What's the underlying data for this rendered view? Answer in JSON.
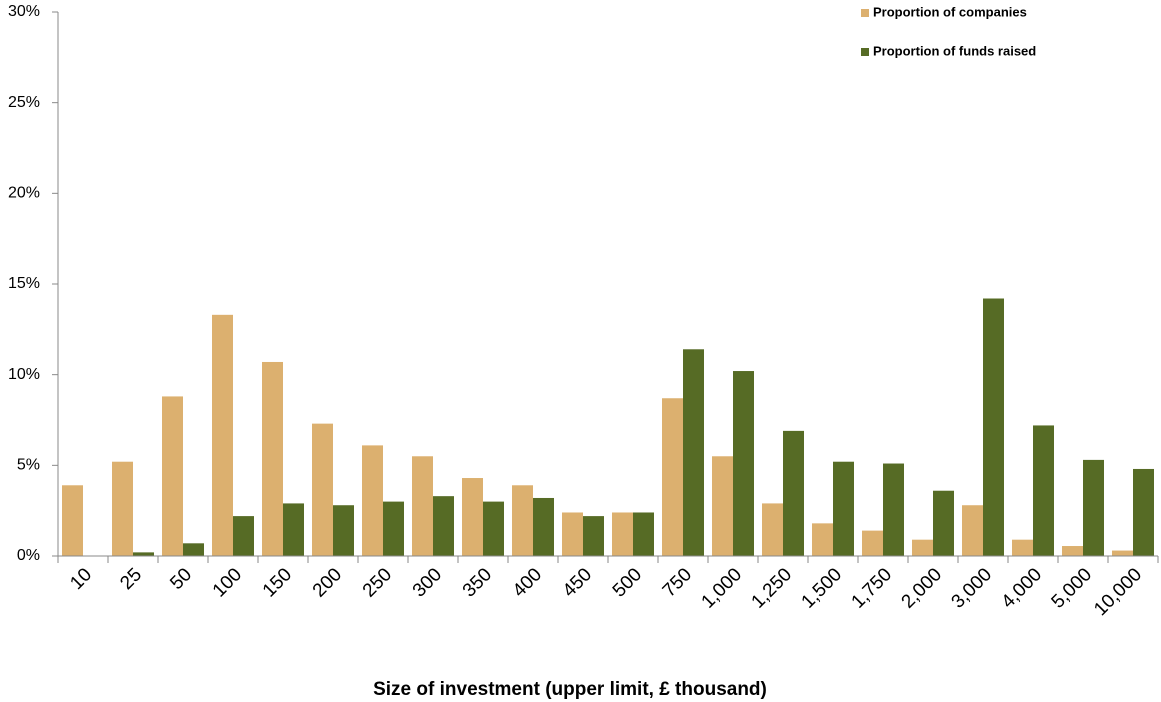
{
  "chart_data": {
    "type": "bar",
    "x_label": "Size of investment (upper limit, £ thousand)",
    "categories": [
      "10",
      "25",
      "50",
      "100",
      "150",
      "200",
      "250",
      "300",
      "350",
      "400",
      "450",
      "500",
      "750",
      "1,000",
      "1,250",
      "1,500",
      "1,750",
      "2,000",
      "3,000",
      "4,000",
      "5,000",
      "10,000"
    ],
    "series": [
      {
        "name": "Proportion of companies",
        "color": "#dcb06f",
        "values": [
          3.9,
          5.2,
          8.8,
          13.3,
          10.7,
          7.3,
          6.1,
          5.5,
          4.3,
          3.9,
          2.4,
          2.4,
          8.7,
          5.5,
          2.9,
          1.8,
          1.4,
          0.9,
          2.8,
          0.9,
          0.55,
          0.3
        ]
      },
      {
        "name": "Proportion of funds raised",
        "color": "#566b25",
        "values": [
          0,
          0.2,
          0.7,
          2.2,
          2.9,
          2.8,
          3.0,
          3.3,
          3.0,
          3.2,
          2.2,
          2.4,
          11.4,
          10.2,
          6.9,
          5.2,
          5.1,
          3.6,
          14.2,
          7.2,
          5.3,
          4.8
        ]
      }
    ],
    "ylim": [
      0,
      30
    ],
    "yticks": [
      {
        "value": 0,
        "label": "0%"
      },
      {
        "value": 5,
        "label": "5%"
      },
      {
        "value": 10,
        "label": "10%"
      },
      {
        "value": 15,
        "label": "15%"
      },
      {
        "value": 20,
        "label": "20%"
      },
      {
        "value": 25,
        "label": "25%"
      },
      {
        "value": 30,
        "label": "30%"
      }
    ],
    "legend": "top-right"
  }
}
